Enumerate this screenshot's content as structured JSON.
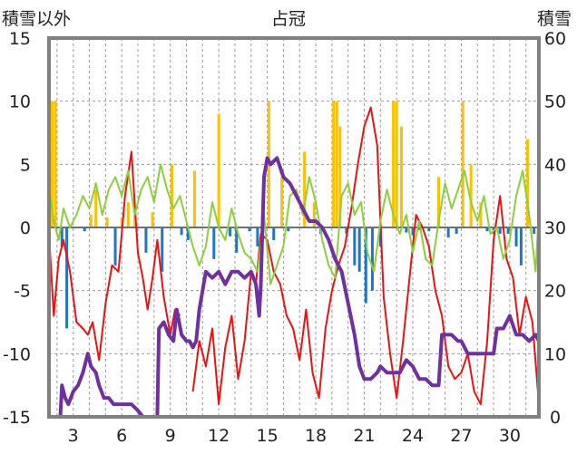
{
  "chart_data": {
    "type": "line",
    "title": "占冠",
    "ylabel_left": "積雪以外",
    "ylabel_right": "積雪",
    "xlim": [
      1.5,
      31.8
    ],
    "ylim_left": [
      -15,
      15
    ],
    "ylim_right": [
      0,
      60
    ],
    "x_ticks": [
      3,
      6,
      9,
      12,
      15,
      18,
      21,
      24,
      27,
      30
    ],
    "y_ticks_left": [
      -15,
      -10,
      -5,
      0,
      5,
      10,
      15
    ],
    "y_ticks_right": [
      0,
      10,
      20,
      30,
      40,
      50,
      60
    ],
    "grid": true,
    "colors": {
      "temperature": "#ee1111",
      "wind": "#8ccf3c",
      "snow_depth": "#7030a0",
      "precip_positive": "#ffc000",
      "precip_negative": "#1f77c4",
      "frame": "#808080"
    },
    "series": [
      {
        "key": "temperature",
        "axis": "left",
        "color": "#ee1111",
        "x": [
          1.5,
          1.8,
          2.1,
          2.4,
          2.8,
          3.2,
          3.6,
          3.9,
          4.2,
          4.6,
          5.0,
          5.4,
          5.8,
          6.2,
          6.6,
          7.0,
          7.3,
          7.6,
          7.9,
          8.2,
          8.6,
          9.0,
          9.3,
          9.6,
          10.0,
          10.4,
          10.8,
          11.2,
          11.6,
          12.0,
          12.4,
          12.8,
          13.2,
          13.6,
          14.0,
          14.3,
          14.6,
          15.0,
          15.4,
          15.8,
          16.2,
          16.6,
          17.0,
          17.4,
          17.8,
          18.2,
          18.6,
          19.0,
          19.4,
          19.8,
          20.2,
          20.6,
          21.0,
          21.4,
          21.8,
          22.2,
          22.6,
          23.0,
          23.4,
          23.8,
          24.2,
          24.6,
          25.0,
          25.4,
          25.8,
          26.2,
          26.6,
          27.0,
          27.4,
          27.8,
          28.2,
          28.6,
          29.0,
          29.4,
          29.8,
          30.2,
          30.6,
          31.0,
          31.4,
          31.8
        ],
        "values": [
          -0.5,
          -7.0,
          -2.5,
          -1.0,
          -3.5,
          -7.5,
          -8.0,
          -8.5,
          -7.5,
          -10.5,
          -6.0,
          -3.0,
          -3.5,
          2.5,
          6.0,
          -2.0,
          -4.0,
          -6.5,
          -4.0,
          -1.0,
          -5.5,
          -8.5,
          -6.5,
          -7.0,
          null,
          -13.0,
          -9.0,
          -11.0,
          -8.0,
          -14.0,
          -9.5,
          -7.0,
          -12.0,
          -9.0,
          -3.5,
          -4.5,
          -0.5,
          -1.0,
          -3.5,
          -4.5,
          -7.0,
          -8.0,
          -10.5,
          -6.5,
          -11.5,
          -13.5,
          -8.0,
          -5.0,
          -3.0,
          -1.5,
          1.5,
          5.0,
          8.0,
          9.5,
          6.5,
          -5.5,
          -10.0,
          -13.5,
          -9.0,
          -4.0,
          1.0,
          0.0,
          -1.5,
          -5.0,
          -7.0,
          -11.0,
          -12.0,
          -11.5,
          -10.0,
          -13.0,
          -14.0,
          -9.0,
          -1.0,
          2.5,
          -2.5,
          -4.0,
          -8.5,
          -5.5,
          -7.5,
          -14.0
        ]
      },
      {
        "key": "wind",
        "axis": "left",
        "color": "#8ccf3c",
        "x": [
          1.5,
          1.8,
          2.1,
          2.4,
          2.8,
          3.2,
          3.6,
          4.0,
          4.4,
          4.8,
          5.2,
          5.6,
          6.0,
          6.4,
          6.8,
          7.2,
          7.6,
          8.0,
          8.4,
          8.8,
          9.2,
          9.6,
          10.0,
          10.4,
          10.8,
          11.2,
          11.6,
          12.0,
          12.4,
          12.8,
          13.2,
          13.6,
          14.0,
          14.4,
          14.8,
          15.2,
          15.6,
          16.0,
          16.4,
          16.8,
          17.2,
          17.6,
          18.0,
          18.4,
          18.8,
          19.2,
          19.6,
          20.0,
          20.4,
          20.8,
          21.2,
          21.6,
          22.0,
          22.4,
          22.8,
          23.2,
          23.6,
          24.0,
          24.4,
          24.8,
          25.2,
          25.6,
          26.0,
          26.4,
          26.8,
          27.2,
          27.6,
          28.0,
          28.4,
          28.8,
          29.2,
          29.6,
          30.0,
          30.4,
          30.8,
          31.2,
          31.6,
          31.8
        ],
        "values": [
          3.0,
          0.5,
          -1.0,
          1.5,
          0.0,
          1.0,
          2.5,
          1.5,
          3.5,
          1.0,
          3.0,
          4.0,
          2.5,
          4.5,
          1.0,
          3.0,
          4.0,
          2.0,
          5.0,
          3.0,
          1.5,
          2.5,
          0.5,
          -1.5,
          -3.0,
          -1.5,
          2.0,
          0.0,
          -1.0,
          1.5,
          -0.5,
          -2.0,
          -2.5,
          -3.5,
          1.0,
          -4.5,
          -3.0,
          -1.5,
          2.5,
          3.0,
          1.0,
          4.0,
          2.0,
          -1.0,
          -3.0,
          -4.0,
          2.5,
          3.5,
          1.0,
          2.0,
          -2.0,
          -3.5,
          0.5,
          3.0,
          1.0,
          -0.5,
          1.0,
          -2.0,
          0.5,
          -2.5,
          -3.0,
          0.5,
          3.5,
          1.5,
          3.0,
          4.5,
          2.0,
          0.5,
          2.5,
          -0.5,
          0.0,
          -2.5,
          -1.0,
          2.5,
          4.5,
          1.0,
          -3.5,
          1.5
        ]
      },
      {
        "key": "snow_depth",
        "axis": "right",
        "color": "#7030a0",
        "x": [
          1.5,
          2.2,
          2.3,
          2.5,
          2.7,
          3.0,
          3.3,
          3.6,
          3.9,
          4.1,
          4.4,
          4.6,
          4.9,
          5.2,
          5.5,
          5.9,
          6.2,
          6.6,
          7.0,
          7.3,
          7.6,
          7.9,
          8.2,
          8.3,
          8.6,
          8.9,
          9.2,
          9.4,
          9.7,
          10.0,
          10.2,
          10.4,
          10.6,
          10.8,
          11.0,
          11.2,
          11.6,
          12.0,
          12.4,
          12.8,
          13.2,
          13.6,
          14.0,
          14.3,
          14.5,
          14.6,
          14.8,
          15.0,
          15.2,
          15.6,
          16.0,
          16.4,
          16.8,
          17.2,
          17.6,
          18.0,
          18.4,
          18.8,
          19.2,
          19.6,
          20.0,
          20.4,
          20.7,
          21.0,
          21.4,
          21.8,
          22.0,
          22.4,
          22.8,
          23.2,
          23.6,
          24.0,
          24.4,
          24.8,
          25.2,
          25.6,
          25.8,
          26.0,
          26.4,
          26.8,
          27.0,
          27.4,
          27.8,
          28.2,
          28.6,
          29.0,
          29.2,
          29.6,
          30.0,
          30.4,
          30.8,
          31.2,
          31.6,
          31.8
        ],
        "values": [
          0.0,
          0.0,
          5.0,
          3.0,
          2.0,
          4.0,
          5.0,
          7.0,
          10.0,
          8.0,
          7.0,
          5.0,
          3.0,
          3.0,
          2.0,
          2.0,
          2.0,
          2.0,
          1.0,
          0.0,
          0.0,
          0.0,
          0.0,
          14.0,
          15.0,
          13.0,
          12.0,
          17.0,
          13.0,
          12.0,
          12.0,
          11.0,
          12.0,
          17.0,
          20.0,
          23.0,
          22.0,
          23.0,
          21.0,
          23.0,
          23.0,
          22.0,
          23.0,
          21.0,
          16.0,
          21.0,
          38.0,
          41.0,
          40.0,
          41.0,
          38.0,
          37.0,
          35.0,
          33.0,
          31.0,
          31.0,
          30.0,
          28.0,
          25.0,
          23.0,
          18.0,
          13.0,
          8.0,
          6.0,
          6.0,
          7.0,
          8.0,
          7.0,
          7.0,
          7.0,
          9.0,
          8.0,
          6.0,
          6.0,
          5.0,
          5.0,
          13.0,
          13.0,
          13.0,
          12.0,
          12.0,
          10.0,
          10.0,
          10.0,
          10.0,
          10.0,
          14.0,
          14.0,
          16.0,
          13.0,
          13.0,
          12.0,
          13.0,
          12.0
        ]
      }
    ],
    "precip_bars": {
      "axis": "left",
      "x": [
        1.7,
        1.9,
        2.3,
        2.6,
        3.7,
        4.1,
        4.4,
        5.1,
        5.6,
        6.0,
        6.4,
        6.8,
        7.5,
        7.9,
        8.5,
        9.1,
        9.7,
        10.1,
        10.5,
        11.7,
        12.0,
        12.7,
        13.1,
        13.9,
        14.4,
        15.1,
        15.4,
        15.9,
        16.3,
        17.3,
        17.9,
        18.3,
        19.1,
        19.3,
        19.5,
        19.9,
        20.4,
        20.7,
        21.1,
        21.5,
        22.0,
        22.8,
        23.0,
        23.3,
        23.6,
        24.0,
        24.4,
        25.0,
        25.6,
        26.2,
        26.7,
        27.1,
        27.6,
        28.2,
        28.6,
        29.0,
        29.4,
        29.9,
        30.4,
        30.7,
        31.1,
        31.5
      ],
      "values": [
        10.0,
        10.0,
        -1.5,
        -8.0,
        -0.3,
        1.0,
        3.0,
        0.8,
        -3.0,
        0.8,
        2.0,
        1.0,
        -2.0,
        1.2,
        -3.5,
        5.0,
        -0.6,
        -1.0,
        4.5,
        -2.5,
        9.0,
        -0.7,
        -2.0,
        -0.3,
        -1.5,
        10.0,
        -1.0,
        4.0,
        -0.3,
        6.0,
        2.0,
        -0.5,
        10.0,
        10.0,
        8.0,
        -0.5,
        -3.0,
        -3.5,
        -6.0,
        -5.0,
        -1.5,
        10.0,
        10.0,
        8.0,
        -0.4,
        -0.6,
        -0.2,
        -0.3,
        4.0,
        -0.8,
        -0.5,
        10.0,
        5.0,
        2.0,
        -0.3,
        -0.5,
        -0.5,
        -0.5,
        -1.5,
        -3.0,
        7.0,
        -0.5
      ]
    }
  }
}
